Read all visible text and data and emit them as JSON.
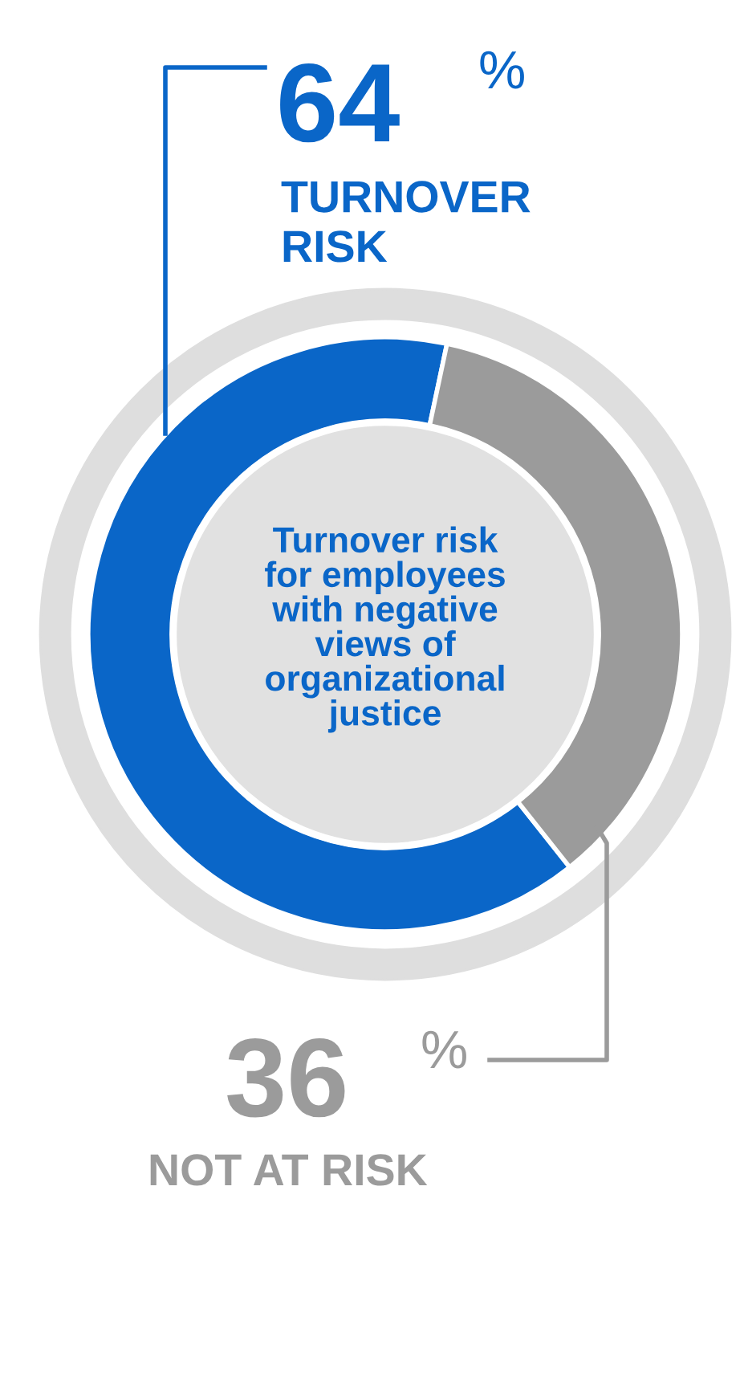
{
  "chart_data": {
    "type": "donut",
    "title": "Turnover risk\nfor employees\nwith negative\nviews of\norganizational\njustice",
    "categories": [
      "TURNOVER RISK",
      "NOT AT RISK"
    ],
    "values": [
      64,
      36
    ],
    "colors": [
      "#0a66c8",
      "#9b9b9b"
    ],
    "value_labels": [
      "64%",
      "36%"
    ]
  }
}
